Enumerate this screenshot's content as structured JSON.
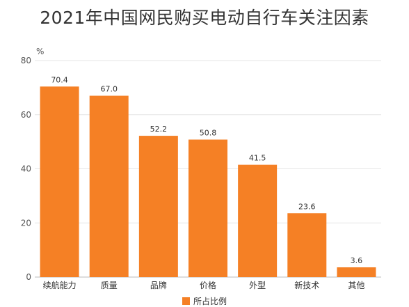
{
  "chart_data": {
    "type": "bar",
    "title": "2021年中国网民购买电动自行车关注因素",
    "unit_label": "%",
    "categories": [
      "续航能力",
      "质量",
      "品牌",
      "价格",
      "外型",
      "新技术",
      "其他"
    ],
    "series": [
      {
        "name": "所占比例",
        "values": [
          70.4,
          67.0,
          52.2,
          50.8,
          41.5,
          23.6,
          3.6
        ],
        "color": "#F58025"
      }
    ],
    "data_labels": [
      "70.4",
      "67.0",
      "52.2",
      "50.8",
      "41.5",
      "23.6",
      "3.6"
    ],
    "ylim": [
      0,
      80
    ],
    "yticks": [
      0,
      20,
      40,
      60,
      80
    ],
    "grid": true,
    "legend_position": "bottom-center",
    "colors": {
      "bar": "#F58025",
      "grid": "#E6E6E6",
      "text": "#333333",
      "axis_text": "#555555"
    }
  }
}
